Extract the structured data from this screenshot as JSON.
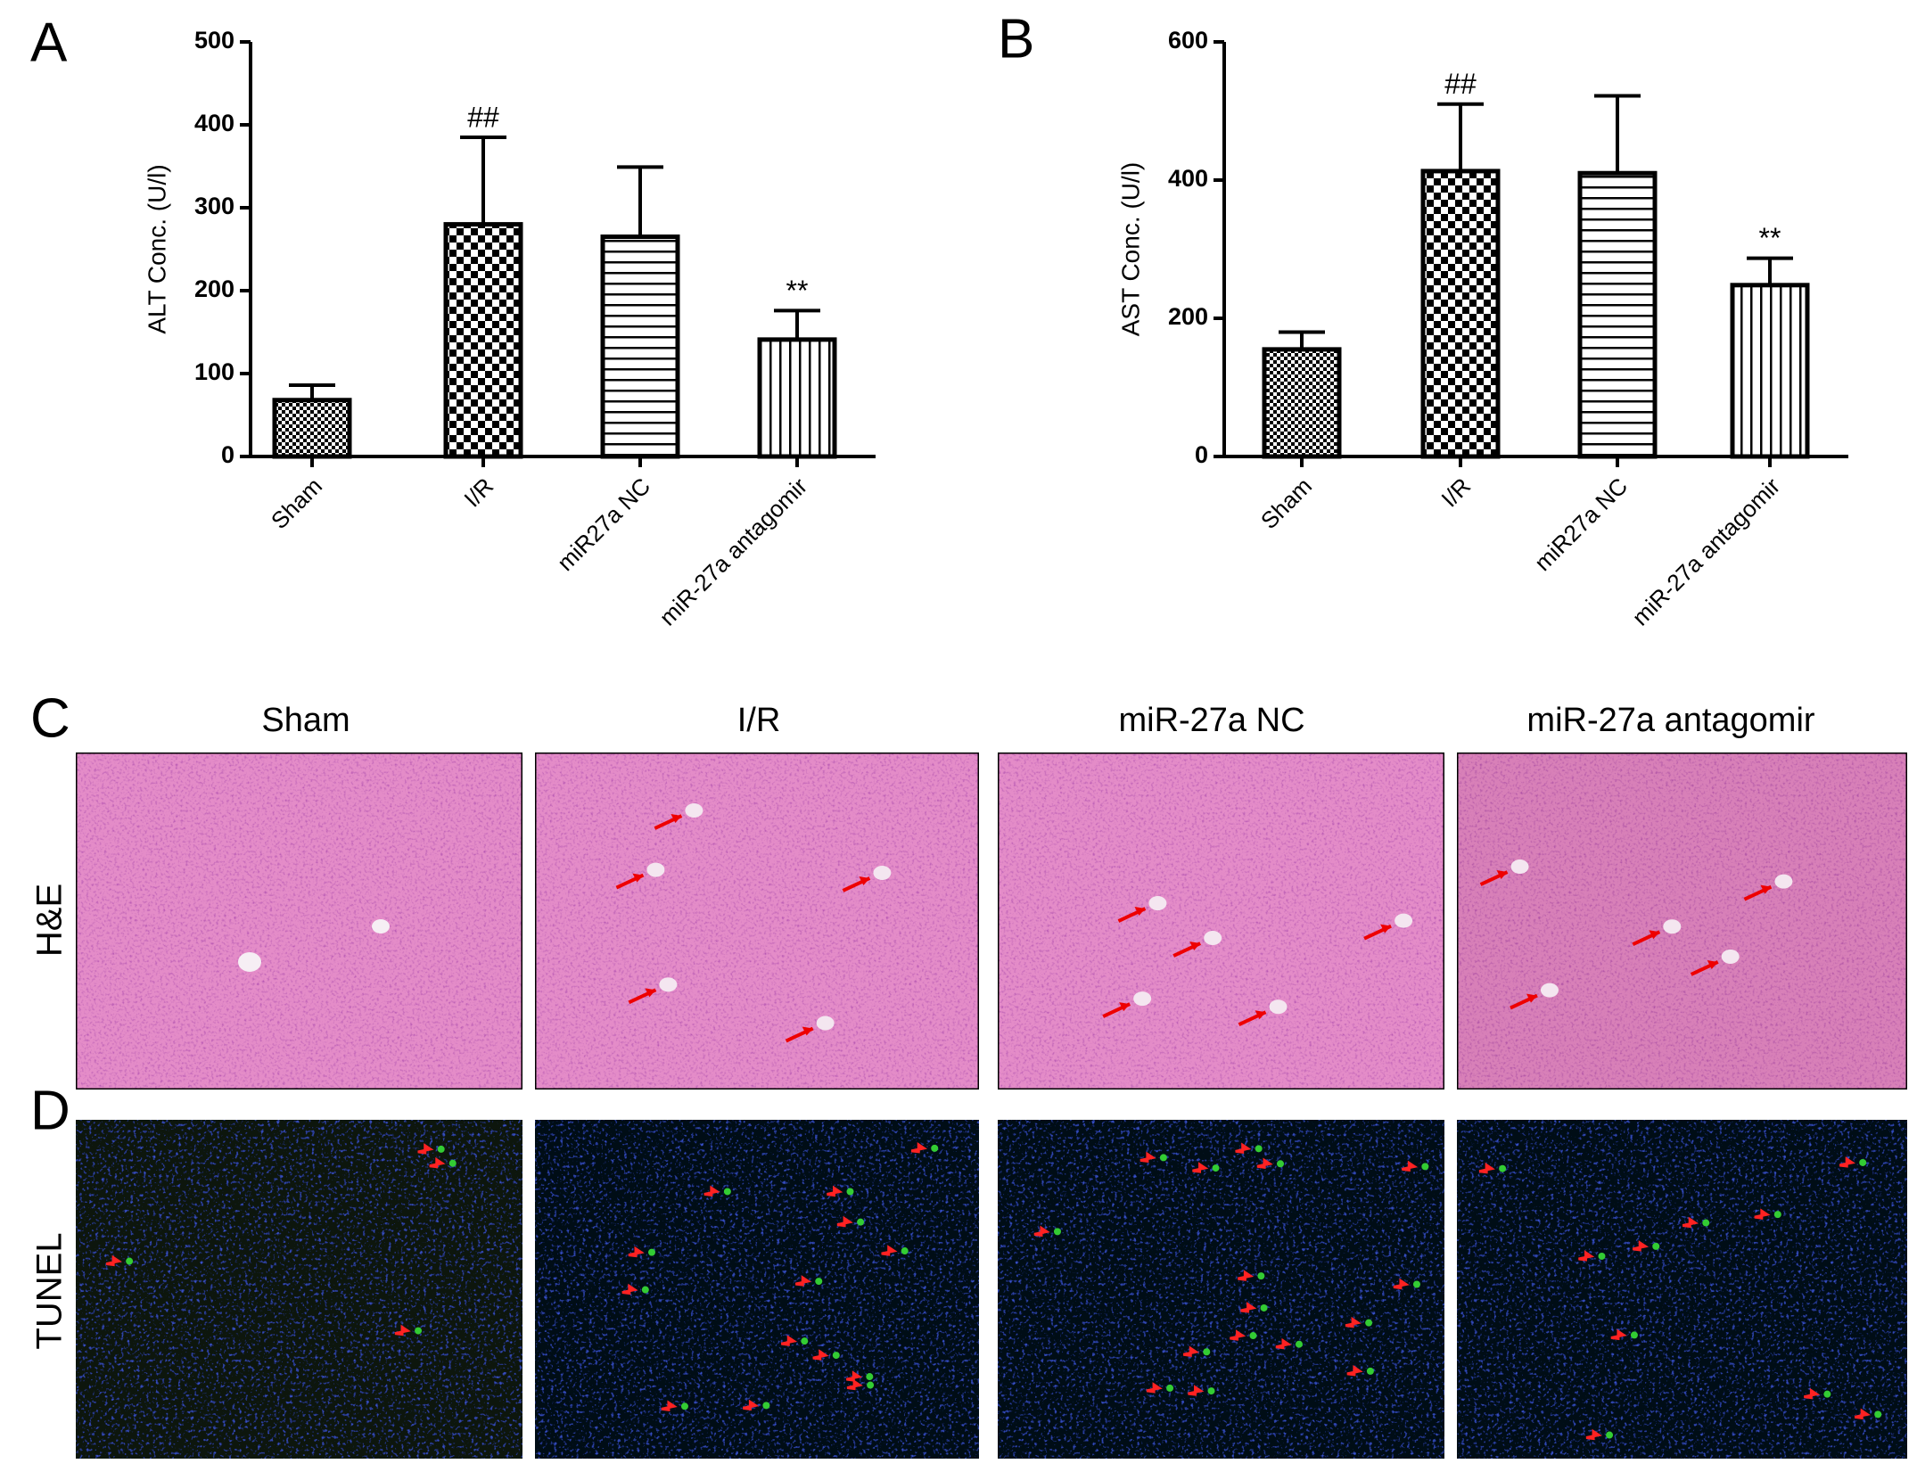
{
  "chart_data": [
    {
      "type": "bar",
      "panel": "A",
      "ylabel": "ALT Conc. (U/l)",
      "categories": [
        "Sham",
        "I/R",
        "miR27a NC",
        "miR-27a antagomir"
      ],
      "values": [
        68,
        280,
        265,
        141
      ],
      "errors": [
        18,
        105,
        84,
        35
      ],
      "annotations": [
        null,
        "##",
        null,
        "**"
      ],
      "hatches": [
        "fine-checker",
        "checker",
        "horizontal",
        "vertical"
      ],
      "color": "#000000",
      "ylim": [
        0,
        500
      ],
      "yticks": [
        0,
        100,
        200,
        300,
        400,
        500
      ]
    },
    {
      "type": "bar",
      "panel": "B",
      "ylabel": "AST Conc. (U/l)",
      "categories": [
        "Sham",
        "I/R",
        "miR27a NC",
        "miR-27a antagomir"
      ],
      "values": [
        155,
        413,
        410,
        248
      ],
      "errors": [
        25,
        97,
        112,
        39
      ],
      "annotations": [
        null,
        "##",
        null,
        "**"
      ],
      "hatches": [
        "fine-checker",
        "checker",
        "horizontal",
        "vertical"
      ],
      "color": "#000000",
      "ylim": [
        0,
        600
      ],
      "yticks": [
        0,
        200,
        400,
        600
      ]
    }
  ],
  "micrographs": {
    "panels": [
      "C",
      "D"
    ],
    "columns": [
      "Sham",
      "I/R",
      "miR-27a NC",
      "miR-27a antagomir"
    ],
    "rows": [
      "H&E",
      "TUNEL"
    ]
  }
}
